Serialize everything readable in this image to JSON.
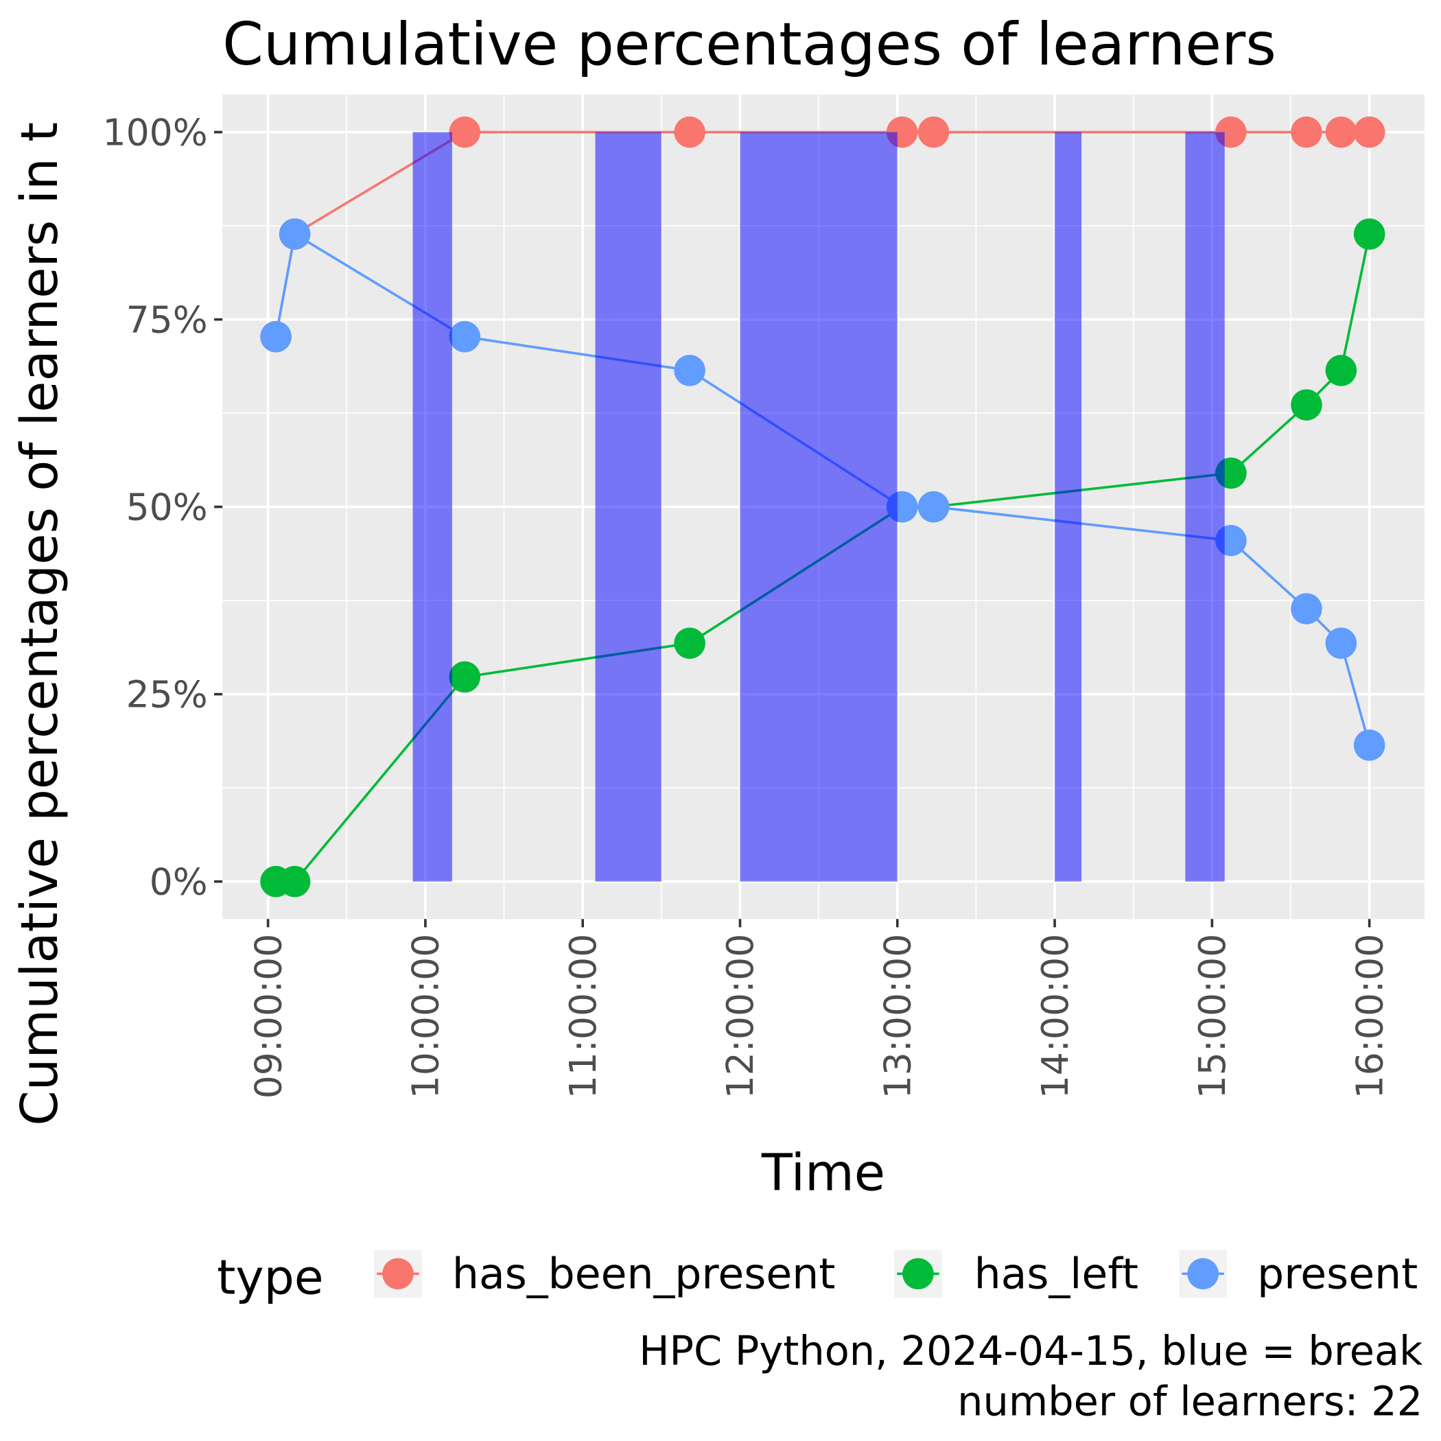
{
  "chart_data": {
    "type": "line",
    "title": "Cumulative percentages of learners",
    "x_label": "Time",
    "y_label": "Cumulative percentages of learners in t",
    "legend_title": "type",
    "caption": [
      "HPC Python, 2024-04-15, blue = break",
      "number of learners: 22"
    ],
    "x": [
      9.05,
      9.17,
      10.25,
      11.68,
      13.03,
      13.23,
      15.12,
      15.6,
      15.82,
      16.0
    ],
    "series": [
      {
        "name": "has_been_present",
        "color": "#F8766D",
        "values": [
          72.7,
          86.4,
          100,
          100,
          100,
          100,
          100,
          100,
          100,
          100
        ]
      },
      {
        "name": "has_left",
        "color": "#00BA38",
        "values": [
          0,
          0,
          27.3,
          31.8,
          50,
          50,
          54.5,
          63.6,
          68.2,
          86.4
        ]
      },
      {
        "name": "present",
        "color": "#619CFF",
        "values": [
          72.7,
          86.4,
          72.7,
          68.2,
          50,
          50,
          45.5,
          36.4,
          31.8,
          18.2
        ]
      }
    ],
    "breaks": {
      "color": "#0000FF",
      "start": [
        9.92,
        11.08,
        12.0,
        14.0,
        14.83
      ],
      "end": [
        10.17,
        11.5,
        13.0,
        14.17,
        15.08
      ]
    },
    "xlim": [
      8.71,
      16.35
    ],
    "ylim": [
      -5,
      105
    ],
    "xticks": [
      {
        "value": 9,
        "label": "09:00:00"
      },
      {
        "value": 10,
        "label": "10:00:00"
      },
      {
        "value": 11,
        "label": "11:00:00"
      },
      {
        "value": 12,
        "label": "12:00:00"
      },
      {
        "value": 13,
        "label": "13:00:00"
      },
      {
        "value": 14,
        "label": "14:00:00"
      },
      {
        "value": 15,
        "label": "15:00:00"
      },
      {
        "value": 16,
        "label": "16:00:00"
      }
    ],
    "yticks": [
      {
        "value": 0,
        "label": "0%"
      },
      {
        "value": 25,
        "label": "25%"
      },
      {
        "value": 50,
        "label": "50%"
      },
      {
        "value": 75,
        "label": "75%"
      },
      {
        "value": 100,
        "label": "100%"
      }
    ],
    "grid": true,
    "legend": "bottom"
  }
}
